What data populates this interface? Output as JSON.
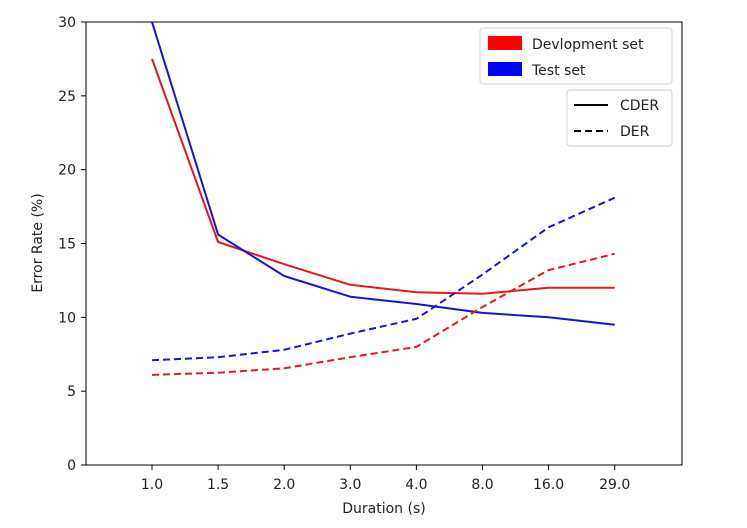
{
  "chart_data": {
    "type": "line",
    "title": "",
    "xlabel": "Duration (s)",
    "ylabel": "Error Rate (%)",
    "categories": [
      "1.0",
      "1.5",
      "2.0",
      "3.0",
      "4.0",
      "8.0",
      "16.0",
      "29.0"
    ],
    "ylim": [
      0,
      30
    ],
    "yticks": [
      "0",
      "5",
      "10",
      "15",
      "20",
      "25",
      "30"
    ],
    "grid": false,
    "series": [
      {
        "name": "Devlopment set CDER",
        "set": "Devlopment set",
        "metric": "CDER",
        "color": "#e31a1c",
        "dash": false,
        "values": [
          27.5,
          15.1,
          13.6,
          12.2,
          11.7,
          11.6,
          12.0,
          12.0
        ]
      },
      {
        "name": "Test set CDER",
        "set": "Test set",
        "metric": "CDER",
        "color": "#1515d6",
        "dash": false,
        "values": [
          30.0,
          15.6,
          12.8,
          11.4,
          10.9,
          10.3,
          10.0,
          9.5
        ]
      },
      {
        "name": "Devlopment set DER",
        "set": "Devlopment set",
        "metric": "DER",
        "color": "#e31a1c",
        "dash": true,
        "values": [
          6.1,
          6.25,
          6.55,
          7.3,
          8.0,
          10.7,
          13.2,
          14.3
        ]
      },
      {
        "name": "Test set DER",
        "set": "Test set",
        "metric": "DER",
        "color": "#1515d6",
        "dash": true,
        "values": [
          7.1,
          7.3,
          7.8,
          8.9,
          9.9,
          12.9,
          16.1,
          18.1
        ]
      }
    ],
    "legends": [
      {
        "placement": "top-right",
        "entries": [
          {
            "label": "Devlopment set",
            "kind": "patch",
            "color": "#ff0000"
          },
          {
            "label": "Test set",
            "kind": "patch",
            "color": "#0000ff"
          }
        ]
      },
      {
        "placement": "upper-right",
        "entries": [
          {
            "label": "CDER",
            "kind": "line",
            "color": "#000000",
            "dash": false
          },
          {
            "label": "DER",
            "kind": "line",
            "color": "#000000",
            "dash": true
          }
        ]
      }
    ]
  }
}
